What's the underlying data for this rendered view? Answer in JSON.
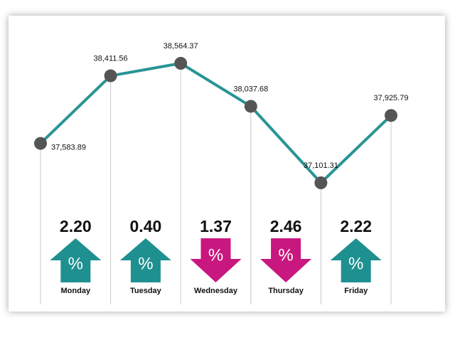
{
  "chart_data": {
    "type": "line",
    "series": [
      {
        "color": "#2a9494",
        "point_color": "#555555",
        "values": [
          37583.89,
          38411.56,
          38564.37,
          38037.68,
          37101.31,
          37925.79
        ],
        "value_labels": [
          "37,583.89",
          "38,411.56",
          "38,564.37",
          "38,037.68",
          "37,101.31",
          "37,925.79"
        ]
      }
    ],
    "changes": {
      "symbol": "%",
      "up_color": "#1f9090",
      "down_color": "#c8177f",
      "days": [
        {
          "day": "Monday",
          "value": 2.2,
          "label": "2.20",
          "direction": "up"
        },
        {
          "day": "Tuesday",
          "value": 0.4,
          "label": "0.40",
          "direction": "up"
        },
        {
          "day": "Wednesday",
          "value": 1.37,
          "label": "1.37",
          "direction": "down"
        },
        {
          "day": "Thursday",
          "value": 2.46,
          "label": "2.46",
          "direction": "down"
        },
        {
          "day": "Friday",
          "value": 2.22,
          "label": "2.22",
          "direction": "up"
        }
      ]
    }
  }
}
